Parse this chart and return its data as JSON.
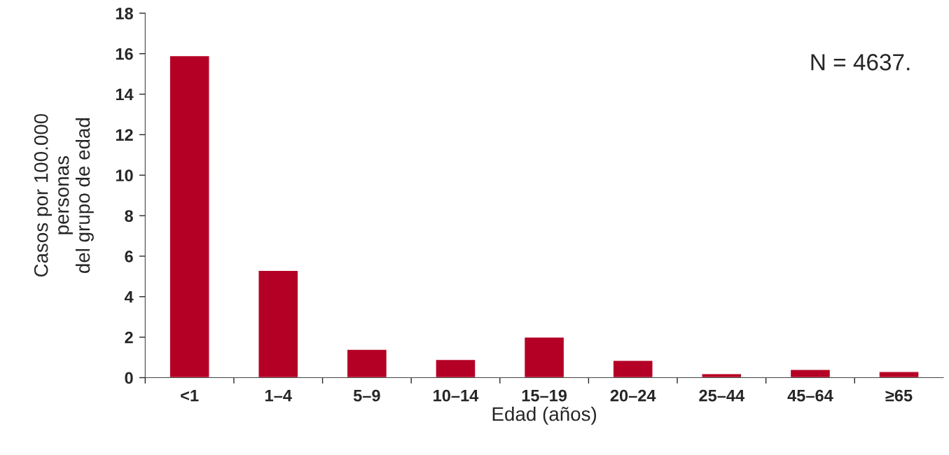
{
  "chart_data": {
    "type": "bar",
    "categories": [
      "<1",
      "1–4",
      "5–9",
      "10–14",
      "15–19",
      "20–24",
      "25–44",
      "45–64",
      "≥65"
    ],
    "values": [
      15.9,
      5.3,
      1.4,
      0.9,
      2.0,
      0.85,
      0.2,
      0.4,
      0.3
    ],
    "color": "#b50025",
    "xlabel": "Edad (años)",
    "ylabel": "Casos por 100.000\npersonas\ndel grupo de edad",
    "ylim": [
      0,
      18
    ],
    "yticks": [
      0,
      2,
      4,
      6,
      8,
      10,
      12,
      14,
      16,
      18
    ],
    "annotations": [
      "N = 4637."
    ],
    "grid": false,
    "legend": false
  }
}
